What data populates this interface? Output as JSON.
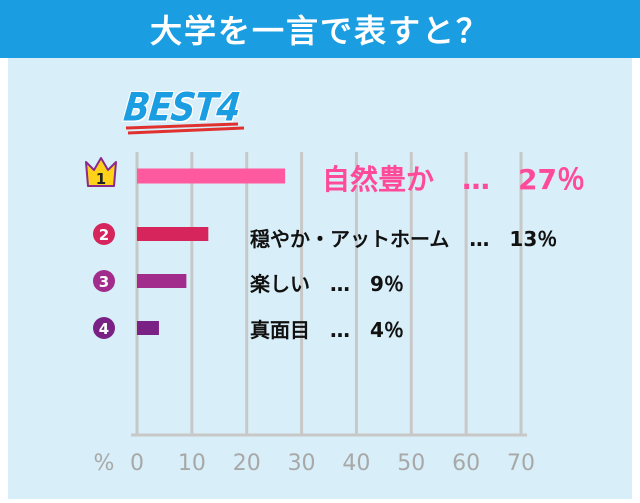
{
  "header": {
    "title": "大学を一言で表すと？"
  },
  "badge": {
    "text": "BEST4"
  },
  "chart_data": {
    "type": "bar",
    "orientation": "horizontal",
    "categories": [
      "自然豊か",
      "穏やか・アットホーム",
      "楽しい",
      "真面目"
    ],
    "values": [
      27,
      13,
      9,
      4
    ],
    "ranks": [
      "1",
      "2",
      "3",
      "4"
    ],
    "data_labels": [
      "自然豊か　…　27％",
      "穏やか・アットホーム　…　13％",
      "楽しい　…　9％",
      "真面目　…　4％"
    ],
    "xlim": [
      0,
      70
    ],
    "xticks": [
      "0",
      "10",
      "20",
      "30",
      "40",
      "50",
      "60",
      "70"
    ],
    "unit_label": "%",
    "grid": true,
    "colors": [
      "#ff5aa0",
      "#d6245c",
      "#a12c8c",
      "#7a2186"
    ]
  }
}
